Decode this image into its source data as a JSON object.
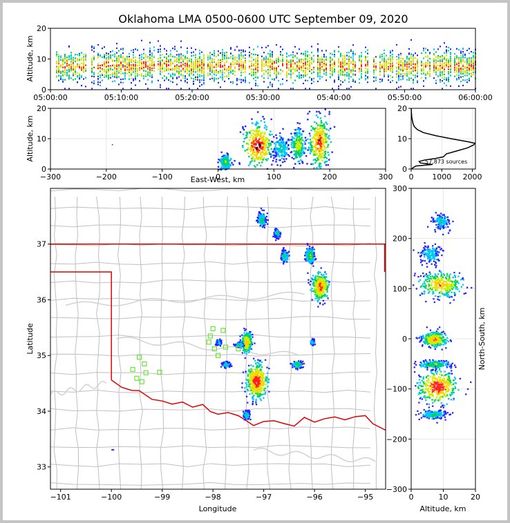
{
  "chart_data": [
    {
      "id": "time-height",
      "type": "heatmap",
      "title": "Oklahoma LMA 0500-0600 UTC September 09, 2020",
      "xlabel": "",
      "ylabel": "Altitude, km",
      "xlim": [
        "05:00:00",
        "06:00:00"
      ],
      "ylim": [
        0,
        20
      ],
      "xticks": [
        "05:00:00",
        "05:10:00",
        "05:20:00",
        "05:30:00",
        "05:40:00",
        "05:50:00",
        "06:00:00"
      ],
      "yticks": [
        0,
        10,
        20
      ],
      "source_band_km": [
        2,
        15
      ],
      "peak_density_altitude_km": 8
    },
    {
      "id": "east-west-height",
      "type": "heatmap",
      "xlabel": "East-West, km",
      "ylabel": "Altitude, km",
      "xlim": [
        -300,
        300
      ],
      "ylim": [
        0,
        20
      ],
      "xticks": [
        -300,
        -200,
        -100,
        0,
        100,
        200,
        300
      ],
      "yticks": [
        0,
        10,
        20
      ],
      "clusters": [
        {
          "x_center": 70,
          "x_halfwidth": 25,
          "z_center": 8,
          "z_halfwidth": 7,
          "intensity": 1.0
        },
        {
          "x_center": 180,
          "x_halfwidth": 18,
          "z_center": 9,
          "z_halfwidth": 8,
          "intensity": 0.9
        },
        {
          "x_center": 142,
          "x_halfwidth": 12,
          "z_center": 8,
          "z_halfwidth": 5,
          "intensity": 0.6
        },
        {
          "x_center": 112,
          "x_halfwidth": 14,
          "z_center": 7,
          "z_halfwidth": 4,
          "intensity": 0.35
        },
        {
          "x_center": 12,
          "x_halfwidth": 10,
          "z_center": 2.5,
          "z_halfwidth": 2.5,
          "intensity": 0.5
        }
      ]
    },
    {
      "id": "altitude-histogram",
      "type": "line",
      "xlim": [
        0,
        2100
      ],
      "ylim": [
        0,
        20
      ],
      "xticks": [
        0,
        1000,
        2000
      ],
      "yticks": [
        0,
        10,
        20
      ],
      "annotation": "57,873 sources",
      "profile": [
        {
          "alt": 0,
          "count": 0
        },
        {
          "alt": 1,
          "count": 150
        },
        {
          "alt": 1.5,
          "count": 700
        },
        {
          "alt": 2,
          "count": 300
        },
        {
          "alt": 2.5,
          "count": 260
        },
        {
          "alt": 3,
          "count": 450
        },
        {
          "alt": 3.5,
          "count": 800
        },
        {
          "alt": 4,
          "count": 1050
        },
        {
          "alt": 5,
          "count": 1150
        },
        {
          "alt": 6,
          "count": 1500
        },
        {
          "alt": 7,
          "count": 1850
        },
        {
          "alt": 8,
          "count": 2050
        },
        {
          "alt": 8.5,
          "count": 2080
        },
        {
          "alt": 9,
          "count": 1850
        },
        {
          "alt": 10,
          "count": 1300
        },
        {
          "alt": 11,
          "count": 800
        },
        {
          "alt": 12,
          "count": 400
        },
        {
          "alt": 13,
          "count": 200
        },
        {
          "alt": 14,
          "count": 100
        },
        {
          "alt": 15,
          "count": 60
        },
        {
          "alt": 17,
          "count": 20
        },
        {
          "alt": 19,
          "count": 5
        },
        {
          "alt": 20,
          "count": 0
        }
      ]
    },
    {
      "id": "plan-view",
      "type": "heatmap",
      "xlabel": "Longitude",
      "ylabel": "Latitude",
      "xlim": [
        -101.2,
        -94.6
      ],
      "ylim": [
        32.6,
        38.0
      ],
      "xticks": [
        -101,
        -100,
        -99,
        -98,
        -97,
        -96,
        -95
      ],
      "yticks": [
        33,
        34,
        35,
        36,
        37
      ],
      "clusters": [
        {
          "lon": -97.15,
          "lat": 34.55,
          "rlon": 0.22,
          "rlat": 0.33,
          "intensity": 1.0
        },
        {
          "lon": -95.9,
          "lat": 36.25,
          "rlon": 0.17,
          "rlat": 0.25,
          "intensity": 0.9
        },
        {
          "lon": -97.35,
          "lat": 35.25,
          "rlon": 0.1,
          "rlat": 0.2,
          "intensity": 0.8
        },
        {
          "lon": -96.35,
          "lat": 34.85,
          "rlon": 0.1,
          "rlat": 0.06,
          "intensity": 0.5
        },
        {
          "lon": -97.05,
          "lat": 37.45,
          "rlon": 0.08,
          "rlat": 0.12,
          "intensity": 0.45
        },
        {
          "lon": -96.1,
          "lat": 36.8,
          "rlon": 0.09,
          "rlat": 0.14,
          "intensity": 0.5
        },
        {
          "lon": -96.6,
          "lat": 36.8,
          "rlon": 0.07,
          "rlat": 0.1,
          "intensity": 0.4
        },
        {
          "lon": -96.75,
          "lat": 37.2,
          "rlon": 0.06,
          "rlat": 0.08,
          "intensity": 0.35
        },
        {
          "lon": -97.35,
          "lat": 33.95,
          "rlon": 0.06,
          "rlat": 0.08,
          "intensity": 0.4
        },
        {
          "lon": -97.9,
          "lat": 35.25,
          "rlon": 0.06,
          "rlat": 0.05,
          "intensity": 0.3
        },
        {
          "lon": -97.75,
          "lat": 34.85,
          "rlon": 0.08,
          "rlat": 0.05,
          "intensity": 0.35
        },
        {
          "lon": -96.05,
          "lat": 35.25,
          "rlon": 0.04,
          "rlat": 0.05,
          "intensity": 0.3
        },
        {
          "lon": -97.5,
          "lat": 35.2,
          "rlon": 0.08,
          "rlat": 0.04,
          "intensity": 0.4
        }
      ],
      "stations": [
        {
          "lon": -98.0,
          "lat": 35.48
        },
        {
          "lon": -97.8,
          "lat": 35.45
        },
        {
          "lon": -98.05,
          "lat": 35.35
        },
        {
          "lon": -98.08,
          "lat": 35.24
        },
        {
          "lon": -97.75,
          "lat": 35.15
        },
        {
          "lon": -97.97,
          "lat": 35.12
        },
        {
          "lon": -97.9,
          "lat": 35.0
        },
        {
          "lon": -97.5,
          "lat": 35.12
        },
        {
          "lon": -99.45,
          "lat": 34.97
        },
        {
          "lon": -99.35,
          "lat": 34.85
        },
        {
          "lon": -99.58,
          "lat": 34.75
        },
        {
          "lon": -99.32,
          "lat": 34.69
        },
        {
          "lon": -99.05,
          "lat": 34.7
        },
        {
          "lon": -99.5,
          "lat": 34.59
        },
        {
          "lon": -99.4,
          "lat": 34.53
        }
      ]
    },
    {
      "id": "north-south-height",
      "type": "heatmap",
      "xlabel": "Altitude, km",
      "ylabel": "North-South, km",
      "xlim": [
        0,
        20
      ],
      "ylim": [
        -300,
        300
      ],
      "xticks": [
        0,
        10,
        20
      ],
      "yticks": [
        -300,
        -200,
        -100,
        0,
        100,
        200,
        300
      ],
      "clusters": [
        {
          "ns_center": 110,
          "ns_halfwidth": 25,
          "z_center": 9,
          "z_halfwidth": 7,
          "intensity": 0.8
        },
        {
          "ns_center": 0,
          "ns_halfwidth": 15,
          "z_center": 7,
          "z_halfwidth": 4,
          "intensity": 0.8
        },
        {
          "ns_center": -50,
          "ns_halfwidth": 8,
          "z_center": 7,
          "z_halfwidth": 5,
          "intensity": 0.5
        },
        {
          "ns_center": -95,
          "ns_halfwidth": 32,
          "z_center": 8,
          "z_halfwidth": 6,
          "intensity": 1.0
        },
        {
          "ns_center": -150,
          "ns_halfwidth": 8,
          "z_center": 7,
          "z_halfwidth": 4,
          "intensity": 0.4
        },
        {
          "ns_center": 170,
          "ns_halfwidth": 20,
          "z_center": 6,
          "z_halfwidth": 3,
          "intensity": 0.3
        },
        {
          "ns_center": 235,
          "ns_halfwidth": 15,
          "z_center": 9,
          "z_halfwidth": 3,
          "intensity": 0.3
        }
      ]
    }
  ]
}
